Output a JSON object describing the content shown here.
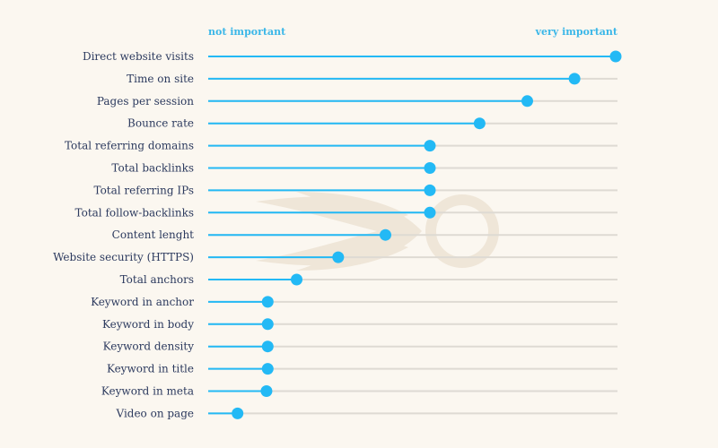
{
  "chart_data": {
    "type": "lollipop",
    "scale_labels": {
      "low": "not important",
      "high": "very important"
    },
    "xlim": [
      0,
      1
    ],
    "categories": [
      "Direct website visits",
      "Time on site",
      "Pages per session",
      "Bounce rate",
      "Total referring domains",
      "Total backlinks",
      "Total referring IPs",
      "Total follow-backlinks",
      "Content lenght",
      "Website security (HTTPS)",
      "Total anchors",
      "Keyword in anchor",
      "Keyword in body",
      "Keyword density",
      "Keyword in title",
      "Keyword in meta",
      "Video on page"
    ],
    "values": [
      1.0,
      0.899,
      0.783,
      0.666,
      0.544,
      0.544,
      0.544,
      0.544,
      0.435,
      0.319,
      0.217,
      0.146,
      0.146,
      0.146,
      0.146,
      0.143,
      0.072
    ],
    "colors": {
      "accent": "#23b9f5",
      "scale_label": "#3bb7e8",
      "track": "#dedad3",
      "label": "#2c3a5e",
      "background": "#fbf7f0",
      "watermark": "#efe6d8"
    }
  }
}
